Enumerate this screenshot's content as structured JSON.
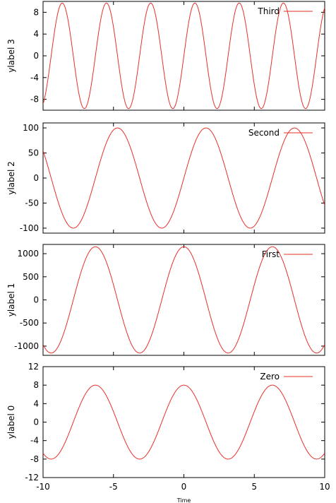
{
  "chart_data": {
    "type": "line",
    "layout": "stacked-subplots-shared-x",
    "xlabel": "Time",
    "xlim": [
      -10,
      10
    ],
    "x_ticks": [
      -10,
      -5,
      0,
      5,
      10
    ],
    "x_tick_labels": [
      "-10",
      "-5",
      "0",
      "5",
      "10"
    ],
    "line_color": "#e8302a",
    "legend_position": "top-right",
    "grid": false,
    "panels": [
      {
        "series_name": "Third",
        "ylabel": "ylabel 3",
        "ylim": [
          -10,
          10
        ],
        "y_ticks": [
          -8,
          -4,
          0,
          4,
          8
        ],
        "y_tick_labels": [
          "-8",
          "-4",
          "0",
          "4",
          "8"
        ],
        "function": {
          "amplitude": 9.7,
          "frequency": 2.0,
          "phase": 0.0,
          "wave": "sin"
        },
        "x": [
          -10,
          -9.5,
          -9,
          -8.5,
          -8,
          -7.5,
          -7,
          -6.5,
          -6,
          -5.5,
          -5,
          -4.5,
          -4,
          -3.5,
          -3,
          -2.5,
          -2,
          -1.5,
          -1,
          -0.5,
          0,
          0.5,
          1,
          1.5,
          2,
          2.5,
          3,
          3.5,
          4,
          4.5,
          5,
          5.5,
          6,
          6.5,
          7,
          7.5,
          8,
          8.5,
          9,
          9.5,
          10
        ],
        "y": [
          -8.84,
          3.34,
          7.29,
          -9.31,
          -2.79,
          6.34,
          9.43,
          -6.61,
          -5.18,
          9.66,
          5.28,
          -6.53,
          -9.58,
          6.06,
          2.71,
          -9.22,
          -7.34,
          3.28,
          8.82,
          -8.16,
          0,
          8.16,
          -8.82,
          -3.28,
          7.34,
          9.22,
          -2.71,
          -6.06,
          9.58,
          6.53,
          -5.28,
          -9.66,
          5.18,
          6.61,
          -9.43,
          -6.34,
          2.79,
          9.31,
          -7.29,
          -3.34,
          8.84
        ]
      },
      {
        "series_name": "Second",
        "ylabel": "ylabel 2",
        "ylim": [
          -110,
          110
        ],
        "y_ticks": [
          -100,
          -50,
          0,
          50,
          100
        ],
        "y_tick_labels": [
          "-100",
          "-50",
          "0",
          "50",
          "100"
        ],
        "function": {
          "amplitude": 100,
          "frequency": 1.0,
          "phase": 0.0,
          "wave": "sin"
        },
        "x": [
          -10,
          -9,
          -8,
          -7,
          -6,
          -5,
          -4,
          -3,
          -2,
          -1,
          0,
          1,
          2,
          3,
          4,
          5,
          6,
          7,
          8,
          9,
          10
        ],
        "y": [
          54.4,
          -41.2,
          -98.9,
          -65.7,
          27.9,
          95.9,
          75.7,
          -14.1,
          -90.9,
          -84.1,
          0,
          84.1,
          90.9,
          14.1,
          -75.7,
          -95.9,
          -27.9,
          65.7,
          98.9,
          41.2,
          -54.4
        ]
      },
      {
        "series_name": "First",
        "ylabel": "ylabel 1",
        "ylim": [
          -1200,
          1200
        ],
        "y_ticks": [
          -1000,
          -500,
          0,
          500,
          1000
        ],
        "y_tick_labels": [
          "-1000",
          "-500",
          "0",
          "500",
          "1000"
        ],
        "function": {
          "amplitude": 1150,
          "frequency": 1.0,
          "phase": 1.5708,
          "wave": "sin"
        },
        "x": [
          -10,
          -9,
          -8,
          -7,
          -6,
          -5,
          -4,
          -3,
          -2,
          -1,
          0,
          1,
          2,
          3,
          4,
          5,
          6,
          7,
          8,
          9,
          10
        ],
        "y": [
          -965,
          -1048,
          -167,
          867,
          1104,
          326,
          -752,
          -1138,
          -479,
          621,
          1150,
          621,
          -479,
          -1138,
          -752,
          326,
          1104,
          867,
          -167,
          -1048,
          -965
        ]
      },
      {
        "series_name": "Zero",
        "ylabel": "ylabel 0",
        "ylim": [
          -12,
          12
        ],
        "y_ticks": [
          -12,
          -8,
          -4,
          0,
          4,
          8,
          12
        ],
        "y_tick_labels": [
          "-12",
          "-8",
          "-4",
          "0",
          "4",
          "8",
          "12"
        ],
        "function": {
          "amplitude": 8,
          "frequency": 1.0,
          "phase": 1.5708,
          "wave": "sin"
        },
        "x": [
          -10,
          -9,
          -8,
          -7,
          -6,
          -5,
          -4,
          -3,
          -2,
          -1,
          0,
          1,
          2,
          3,
          4,
          5,
          6,
          7,
          8,
          9,
          10
        ],
        "y": [
          -6.71,
          -7.29,
          -1.16,
          6.03,
          7.68,
          2.27,
          -5.23,
          -7.92,
          -3.33,
          4.32,
          8,
          4.32,
          -3.33,
          -7.92,
          -5.23,
          2.27,
          7.68,
          6.03,
          -1.16,
          -7.29,
          -6.71
        ]
      }
    ]
  }
}
